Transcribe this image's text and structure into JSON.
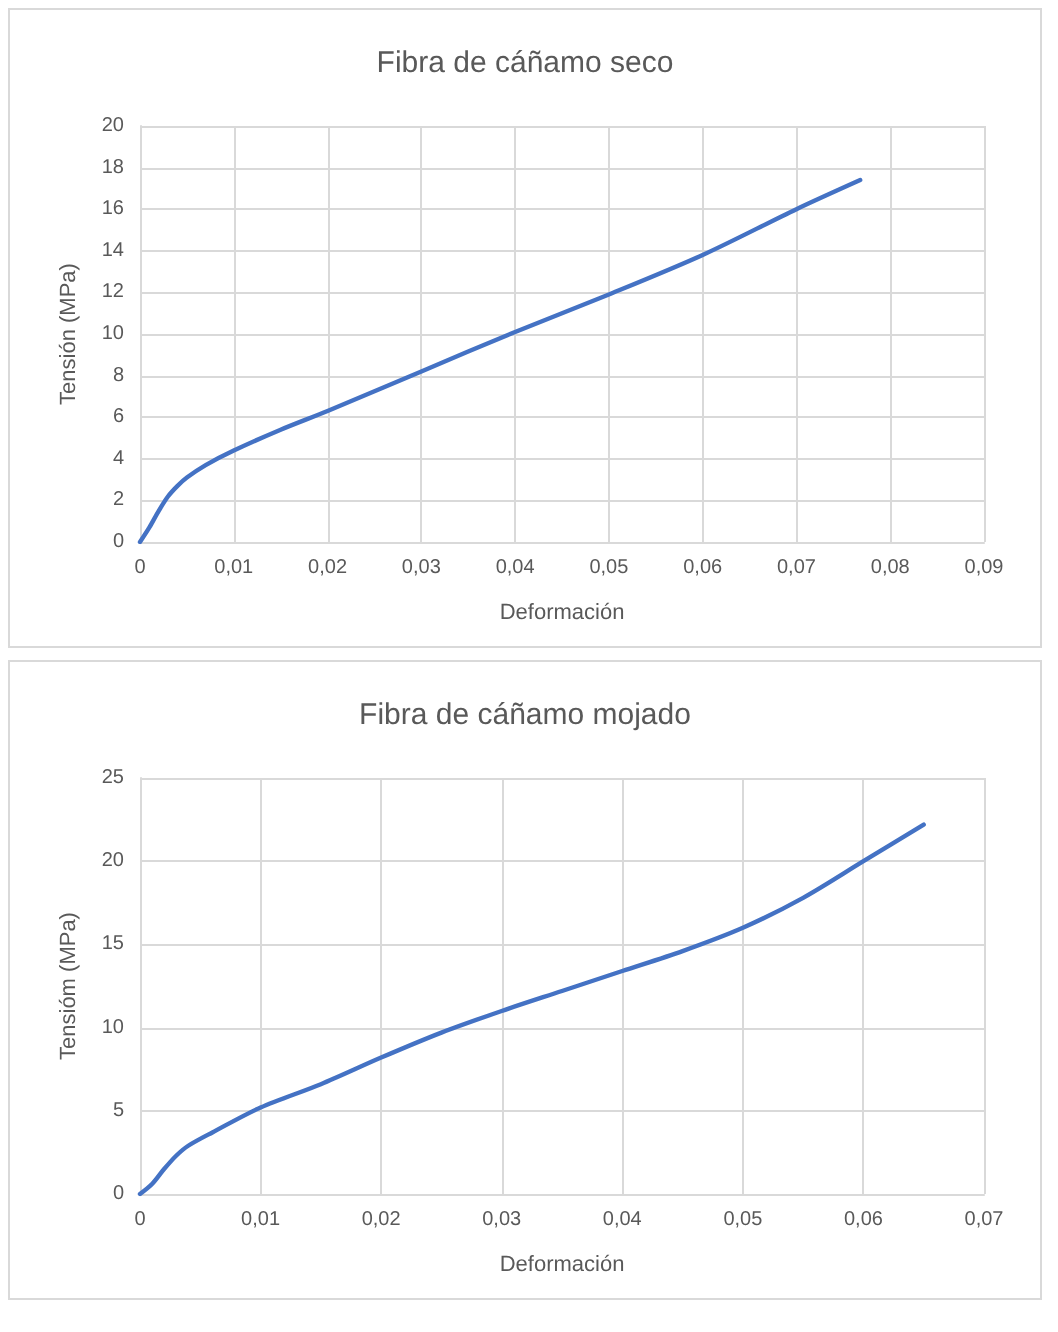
{
  "chart_data": [
    {
      "type": "line",
      "title": "Fibra de cáñamo seco",
      "xlabel": "Deformación",
      "ylabel": "Tensión (MPa)",
      "x": [
        0,
        0.001,
        0.002,
        0.003,
        0.004,
        0.005,
        0.007,
        0.01,
        0.015,
        0.02,
        0.03,
        0.04,
        0.05,
        0.06,
        0.07,
        0.0768
      ],
      "series": [
        {
          "color": "#4472c4",
          "values": [
            0,
            0.7,
            1.5,
            2.2,
            2.7,
            3.1,
            3.7,
            4.4,
            5.4,
            6.3,
            8.2,
            10.1,
            11.9,
            13.8,
            16.0,
            17.4
          ]
        }
      ],
      "xlim": [
        0,
        0.09
      ],
      "xticks": [
        0,
        {
          "value": 0.01,
          "label": "0,01"
        },
        {
          "value": 0.02,
          "label": "0,02"
        },
        {
          "value": 0.03,
          "label": "0,03"
        },
        {
          "value": 0.04,
          "label": "0,04"
        },
        {
          "value": 0.05,
          "label": "0,05"
        },
        {
          "value": 0.06,
          "label": "0,06"
        },
        {
          "value": 0.07,
          "label": "0,07"
        },
        {
          "value": 0.08,
          "label": "0,08"
        },
        {
          "value": 0.09,
          "label": "0,09"
        }
      ],
      "ylim": [
        0,
        20
      ],
      "yticks": [
        0,
        2,
        4,
        6,
        8,
        10,
        12,
        14,
        16,
        18,
        20
      ],
      "grid": true,
      "marker": "none",
      "line_style": "solid"
    },
    {
      "type": "line",
      "title": "Fibra de cáñamo mojado",
      "xlabel": "Deformación",
      "ylabel": "Tensióm (MPa)",
      "x": [
        0,
        0.001,
        0.002,
        0.003,
        0.004,
        0.006,
        0.01,
        0.015,
        0.02,
        0.025,
        0.03,
        0.035,
        0.04,
        0.045,
        0.05,
        0.055,
        0.06,
        0.065
      ],
      "series": [
        {
          "color": "#4472c4",
          "values": [
            0,
            0.6,
            1.5,
            2.3,
            2.9,
            3.7,
            5.2,
            6.6,
            8.2,
            9.7,
            11.0,
            12.2,
            13.4,
            14.6,
            16.0,
            17.8,
            20.0,
            22.2
          ]
        }
      ],
      "xlim": [
        0,
        0.07
      ],
      "xticks": [
        0,
        {
          "value": 0.01,
          "label": "0,01"
        },
        {
          "value": 0.02,
          "label": "0,02"
        },
        {
          "value": 0.03,
          "label": "0,03"
        },
        {
          "value": 0.04,
          "label": "0,04"
        },
        {
          "value": 0.05,
          "label": "0,05"
        },
        {
          "value": 0.06,
          "label": "0,06"
        },
        {
          "value": 0.07,
          "label": "0,07"
        }
      ],
      "ylim": [
        0,
        25
      ],
      "yticks": [
        0,
        5,
        10,
        15,
        20,
        25
      ],
      "grid": true,
      "marker": "none",
      "line_style": "solid"
    }
  ]
}
